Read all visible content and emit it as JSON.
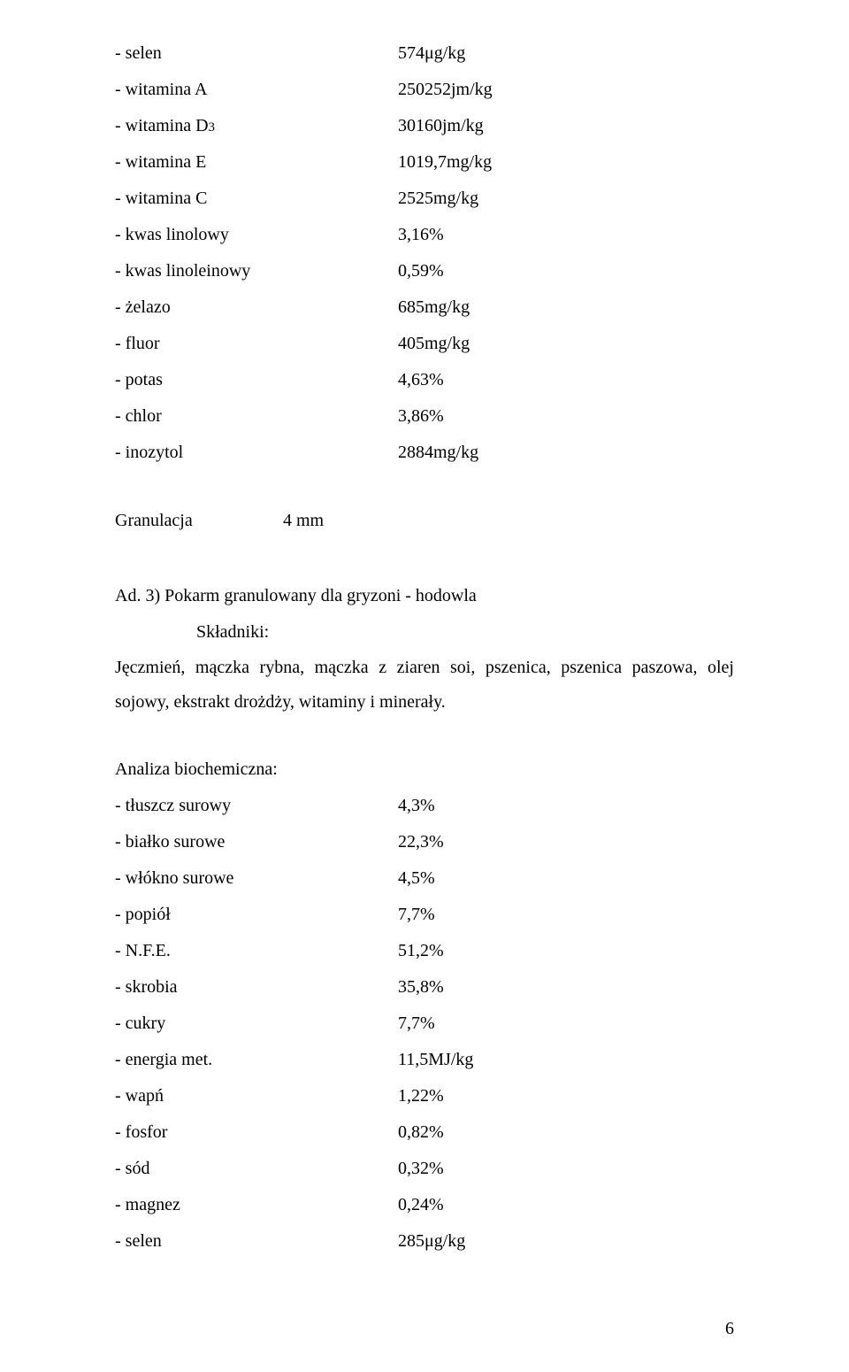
{
  "upper_list": [
    {
      "label": "- selen",
      "value": "574μg/kg"
    },
    {
      "label_prefix": "- witamina D",
      "label_sub": "3",
      "value": "30160jm/kg",
      "is_d3": true
    },
    {
      "label": "- witamina A",
      "value": "250252jm/kg",
      "insert_before_d3": true
    },
    {
      "label": "- witamina E",
      "value": "1019,7mg/kg"
    },
    {
      "label": "- witamina C",
      "value": "2525mg/kg"
    },
    {
      "label": "- kwas linolowy",
      "value": "3,16%"
    },
    {
      "label": "- kwas linoleinowy",
      "value": "0,59%"
    },
    {
      "label": "- żelazo",
      "value": "685mg/kg"
    },
    {
      "label": "- fluor",
      "value": "405mg/kg"
    },
    {
      "label": "- potas",
      "value": "4,63%"
    },
    {
      "label": "- chlor",
      "value": "3,86%"
    },
    {
      "label": "- inozytol",
      "value": "2884mg/kg"
    }
  ],
  "granulacja": {
    "label": "Granulacja",
    "value": "4 mm"
  },
  "ad3": {
    "heading": "Ad. 3)  Pokarm granulowany dla gryzoni - hodowla",
    "subheading": "Składniki:",
    "body": "Jęczmień, mączka rybna, mączka z ziaren soi, pszenica, pszenica paszowa, olej sojowy, ekstrakt drożdży, witaminy i minerały."
  },
  "analysis_heading": "Analiza biochemiczna:",
  "analysis": [
    {
      "label": "- tłuszcz surowy",
      "value": "4,3%"
    },
    {
      "label": "- białko surowe",
      "value": "22,3%"
    },
    {
      "label": "- włókno surowe",
      "value": "4,5%"
    },
    {
      "label": "- popiół",
      "value": "7,7%"
    },
    {
      "label": "- N.F.E.",
      "value": "51,2%"
    },
    {
      "label": "- skrobia",
      "value": "35,8%"
    },
    {
      "label": "- cukry",
      "value": "7,7%"
    },
    {
      "label": "- energia met.",
      "value": "11,5MJ/kg"
    },
    {
      "label": "- wapń",
      "value": "1,22%"
    },
    {
      "label": "- fosfor",
      "value": "0,82%"
    },
    {
      "label": "- sód",
      "value": "0,32%"
    },
    {
      "label": "- magnez",
      "value": "0,24%"
    },
    {
      "label": "- selen",
      "value": "285μg/kg"
    }
  ],
  "page_number": "6"
}
